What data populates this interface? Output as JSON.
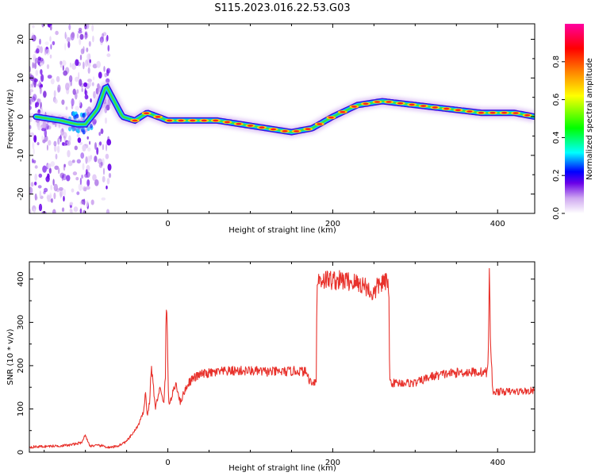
{
  "title": "S115.2023.016.22.53.G03",
  "chart_data": [
    {
      "type": "heatmap",
      "title": "S115.2023.016.22.53.G03",
      "xlabel": "Height of straight line (km)",
      "ylabel": "Frequency (Hz)",
      "xlim": [
        -168,
        445
      ],
      "ylim": [
        -25,
        24
      ],
      "x_ticks": [
        0,
        200,
        400
      ],
      "y_ticks": [
        -20,
        -10,
        0,
        10,
        20
      ],
      "colorbar": {
        "label": "Normalized spectral amplitude",
        "range": [
          0,
          1
        ],
        "ticks": [
          0.0,
          0.2,
          0.4,
          0.6,
          0.8
        ],
        "colormap": [
          "#ffffff",
          "#cfa8f0",
          "#6a00e8",
          "#0000ff",
          "#00ffff",
          "#00ff00",
          "#ffff00",
          "#ff8000",
          "#ff0000",
          "#ff00a0"
        ]
      },
      "noise_region": {
        "x_range": [
          -168,
          -70
        ],
        "y_range": [
          -25,
          24
        ]
      },
      "ridge": [
        {
          "x": -160,
          "y": 0
        },
        {
          "x": -130,
          "y": -1
        },
        {
          "x": -110,
          "y": -2
        },
        {
          "x": -100,
          "y": -2
        },
        {
          "x": -85,
          "y": 2
        },
        {
          "x": -75,
          "y": 8
        },
        {
          "x": -65,
          "y": 4
        },
        {
          "x": -55,
          "y": 0
        },
        {
          "x": -40,
          "y": -1
        },
        {
          "x": -25,
          "y": 1
        },
        {
          "x": 0,
          "y": -1
        },
        {
          "x": 30,
          "y": -1
        },
        {
          "x": 60,
          "y": -1
        },
        {
          "x": 90,
          "y": -2
        },
        {
          "x": 120,
          "y": -3
        },
        {
          "x": 150,
          "y": -4
        },
        {
          "x": 175,
          "y": -3
        },
        {
          "x": 200,
          "y": 0
        },
        {
          "x": 230,
          "y": 3
        },
        {
          "x": 260,
          "y": 4
        },
        {
          "x": 300,
          "y": 3
        },
        {
          "x": 340,
          "y": 2
        },
        {
          "x": 380,
          "y": 1
        },
        {
          "x": 420,
          "y": 1
        },
        {
          "x": 445,
          "y": 0
        }
      ]
    },
    {
      "type": "line",
      "xlabel": "Height of straight line (km)",
      "ylabel": "SNR (10 * v/v)",
      "xlim": [
        -168,
        445
      ],
      "ylim": [
        0,
        440
      ],
      "x_ticks": [
        0,
        200,
        400
      ],
      "y_ticks": [
        0,
        100,
        200,
        300,
        400
      ],
      "color": "#e8322c",
      "series": [
        {
          "x": [
            -168,
            -140,
            -120,
            -105,
            -100,
            -95,
            -80,
            -70,
            -60,
            -50,
            -40,
            -35,
            -30,
            -27,
            -25,
            -22,
            -20,
            -15,
            -10,
            -5,
            -3,
            -2,
            -1,
            0,
            1,
            2,
            5,
            10,
            15,
            20,
            25,
            30,
            40,
            60,
            80,
            100,
            120,
            140,
            160,
            168,
            172,
            176,
            180,
            181,
            183,
            200,
            220,
            240,
            245,
            250,
            255,
            260,
            268,
            269,
            272,
            300,
            320,
            340,
            360,
            380,
            388,
            389,
            390,
            391,
            393,
            394,
            420,
            445
          ],
          "y": [
            12,
            14,
            16,
            22,
            40,
            15,
            15,
            10,
            15,
            25,
            50,
            65,
            90,
            140,
            80,
            120,
            200,
            100,
            150,
            110,
            180,
            340,
            300,
            200,
            120,
            110,
            130,
            160,
            115,
            140,
            160,
            170,
            180,
            185,
            188,
            188,
            186,
            186,
            188,
            185,
            165,
            162,
            165,
            390,
            400,
            398,
            395,
            385,
            370,
            365,
            385,
            392,
            390,
            165,
            160,
            160,
            175,
            182,
            185,
            185,
            185,
            250,
            440,
            280,
            185,
            140,
            140,
            142
          ]
        }
      ]
    }
  ]
}
